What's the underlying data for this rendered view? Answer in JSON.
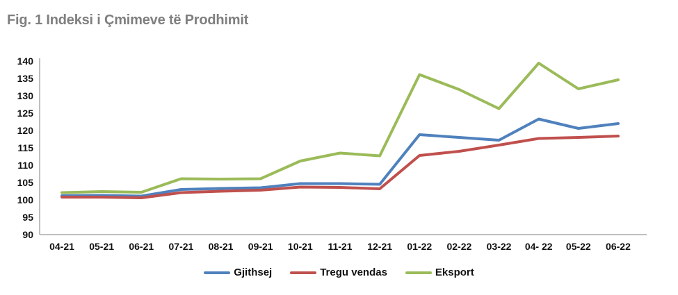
{
  "title": "Fig. 1 Indeksi i Çmimeve të Prodhimit",
  "chart_data": {
    "type": "line",
    "title": "Fig. 1 Indeksi i Çmimeve të Prodhimit",
    "categories": [
      "04-21",
      "05-21",
      "06-21",
      "07-21",
      "08-21",
      "09-21",
      "10-21",
      "11-21",
      "12-21",
      "01-22",
      "02-22",
      "03-22",
      "04- 22",
      "05-22",
      "06-22"
    ],
    "series": [
      {
        "name": "Gjithsej",
        "color": "#4F81BD",
        "values": [
          101.2,
          101.3,
          101.1,
          103.0,
          103.3,
          103.5,
          104.7,
          104.7,
          104.5,
          118.8,
          118.0,
          117.2,
          123.3,
          120.6,
          122.0
        ]
      },
      {
        "name": "Tregu vendas",
        "color": "#C0504D",
        "values": [
          100.8,
          100.8,
          100.6,
          102.1,
          102.5,
          102.8,
          103.7,
          103.6,
          103.2,
          112.8,
          114.0,
          115.8,
          117.7,
          118.0,
          118.4
        ]
      },
      {
        "name": "Eksport",
        "color": "#9BBB59",
        "values": [
          102.1,
          102.4,
          102.2,
          106.1,
          106.0,
          106.1,
          111.2,
          113.5,
          112.7,
          136.1,
          131.8,
          126.3,
          139.4,
          132.0,
          134.6
        ]
      }
    ],
    "xlabel": "",
    "ylabel": "",
    "ylim": [
      90,
      140
    ],
    "yticks": [
      90,
      95,
      100,
      105,
      110,
      115,
      120,
      125,
      130,
      135,
      140
    ],
    "grid": false,
    "legend_position": "bottom",
    "axis_color": "#BFBFBF",
    "title_color": "#7f7f7f",
    "text_color": "#111111"
  }
}
